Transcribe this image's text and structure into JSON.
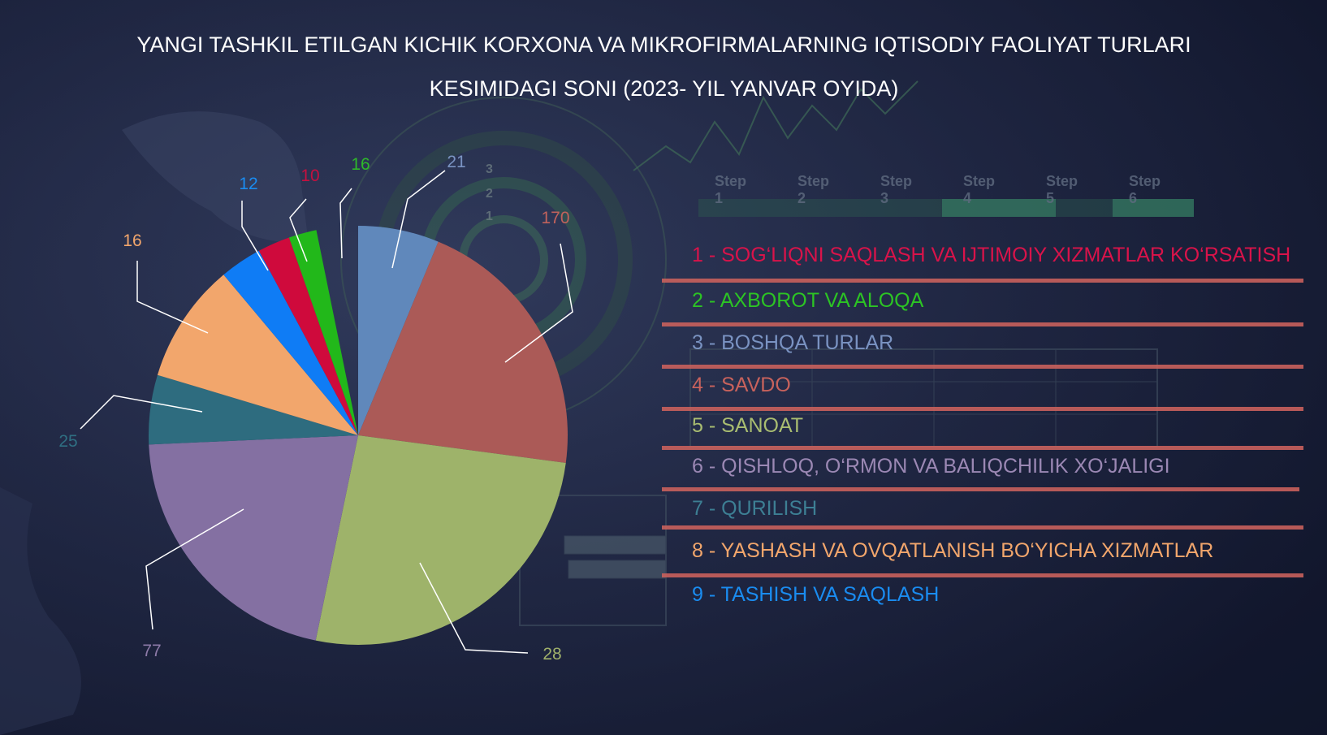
{
  "title": "YANGI TASHKIL ETILGAN KICHIK KORXONA VA MIKROFIRMALARNING IQTISODIY FAOLIYAT TURLARI KESIMIDAGI SONI (2023- YIL YANVAR OYIDA)",
  "background": {
    "steps": [
      "Step 1",
      "Step 2",
      "Step 3",
      "Step 4",
      "Step 5",
      "Step 6"
    ],
    "gauge_numbers": [
      "3",
      "2",
      "1"
    ]
  },
  "chart_data": {
    "type": "pie",
    "title": "YANGI TASHKIL ETILGAN KICHIK KORXONA VA MIKROFIRMALARNING IQTISODIY FAOLIYAT TURLARI KESIMIDAGI SONI (2023- YIL YANVAR OYIDA)",
    "start_angle_deg": 0,
    "direction": "clockwise",
    "legend_position": "right",
    "slices": [
      {
        "label": "3 - BOSHQA TURLAR",
        "value": 21,
        "color": "#6088bb"
      },
      {
        "label": "4 - SAVDO",
        "value": 170,
        "color": "#ab5a57"
      },
      {
        "label": "5 - SANOAT",
        "value": 28,
        "color": "#9eb36a"
      },
      {
        "label": "6 - QISHLOQ, O‘RMON VA BALIQCHILIK XO‘JALIGI",
        "value": 77,
        "color": "#8470a2"
      },
      {
        "label": "7 - QURILISH",
        "value": 25,
        "color": "#2e6c7f"
      },
      {
        "label": "8 - YASHASH VA OVQATLANISH BO‘YICHA XIZMATLAR",
        "value": 16,
        "color": "#f2a66c"
      },
      {
        "label": "9 - TASHISH VA SAQLASH",
        "value": 12,
        "color": "#0f7cf5"
      },
      {
        "label": "1 - SOG‘LIQNI SAQLASH VA IJTIMOIY XIZMATLAR KO‘RSATISH",
        "value": 10,
        "color": "#cf0a3c"
      },
      {
        "label": "2 - AXBOROT VA ALOQA",
        "value": 16,
        "color": "#22b81a"
      }
    ],
    "slice_fraction_visual_note": "slice angles as drawn",
    "visual_fractions": [
      0.0625,
      0.2085,
      0.2615,
      0.2105,
      0.0535,
      0.0925,
      0.0325,
      0.025,
      0.0215
    ],
    "label_colors": [
      "#7a93c2",
      "#c0625c",
      "#9fb06a",
      "#8d7aa8",
      "#2f6f82",
      "#f2a66c",
      "#1a8cf0",
      "#c4103f",
      "#2eb82a"
    ]
  },
  "legend": [
    {
      "text": "1 -  SOG‘LIQNI SAQLASH VA IJTIMOIY XIZMATLAR KO‘RSATISH",
      "color": "#d9134a"
    },
    {
      "text": "2 - AXBOROT VA ALOQA",
      "color": "#2cc424"
    },
    {
      "text": "3 - BOSHQA TURLAR",
      "color": "#7a93c2"
    },
    {
      "text": "4 - SAVDO",
      "color": "#c8625c"
    },
    {
      "text": "5 - SANOAT",
      "color": "#a9bd71"
    },
    {
      "text": "6 - QISHLOQ, O‘RMON VA BALIQCHILIK XO‘JALIGI",
      "color": "#9b88b4"
    },
    {
      "text": "7 - QURILISH",
      "color": "#3d7f94"
    },
    {
      "text": "8 - YASHASH VA OVQATLANISH BO‘YICHA XIZMATLAR",
      "color": "#f2a66c"
    },
    {
      "text": "9 - TASHISH VA SAQLASH",
      "color": "#1a8cf0"
    }
  ]
}
